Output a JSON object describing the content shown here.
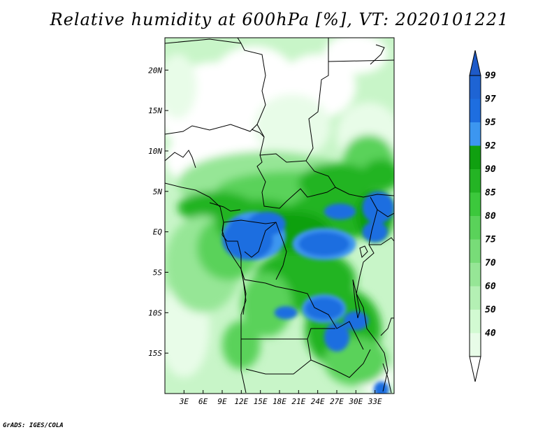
{
  "title": "Relative humidity at 600hPa [%], VT: 2020101221",
  "credit": "GrADS: IGES/COLA",
  "map": {
    "lon_range": [
      0,
      36
    ],
    "lat_range": [
      -20,
      24
    ],
    "lat_ticks": [
      {
        "value": 20,
        "label": "20N"
      },
      {
        "value": 15,
        "label": "15N"
      },
      {
        "value": 10,
        "label": "10N"
      },
      {
        "value": 5,
        "label": "5N"
      },
      {
        "value": 0,
        "label": "EQ"
      },
      {
        "value": -5,
        "label": "5S"
      },
      {
        "value": -10,
        "label": "10S"
      },
      {
        "value": -15,
        "label": "15S"
      }
    ],
    "lon_ticks": [
      {
        "value": 3,
        "label": "3E"
      },
      {
        "value": 6,
        "label": "6E"
      },
      {
        "value": 9,
        "label": "9E"
      },
      {
        "value": 12,
        "label": "12E"
      },
      {
        "value": 15,
        "label": "15E"
      },
      {
        "value": 18,
        "label": "18E"
      },
      {
        "value": 21,
        "label": "21E"
      },
      {
        "value": 24,
        "label": "24E"
      },
      {
        "value": 27,
        "label": "27E"
      },
      {
        "value": 30,
        "label": "30E"
      },
      {
        "value": 33,
        "label": "33E"
      }
    ]
  },
  "colorbar": {
    "levels": [
      {
        "label": "99",
        "color": "#1e64d4"
      },
      {
        "label": "97",
        "color": "#1e6ee0"
      },
      {
        "label": "95",
        "color": "#3c96f0"
      },
      {
        "label": "92",
        "color": "#10a010"
      },
      {
        "label": "90",
        "color": "#24b424"
      },
      {
        "label": "85",
        "color": "#3cc83c"
      },
      {
        "label": "80",
        "color": "#5ad25a"
      },
      {
        "label": "75",
        "color": "#78dc78"
      },
      {
        "label": "70",
        "color": "#96e696"
      },
      {
        "label": "60",
        "color": "#b4f0b4"
      },
      {
        "label": "50",
        "color": "#d2fad2"
      },
      {
        "label": "40",
        "color": "#e8fce8"
      }
    ],
    "top_color": "#1e5ac8",
    "bottom_color": "#ffffff"
  },
  "field_colors": {
    "very_dry": "#ffffff",
    "dry": "#e8fce8",
    "light": "#c8f5c8",
    "mid": "#96e696",
    "moist": "#5ad25a",
    "wet": "#24b424",
    "very_wet": "#10a010",
    "saturated": "#1e6ee0",
    "saturated_edge": "#3c96f0"
  }
}
